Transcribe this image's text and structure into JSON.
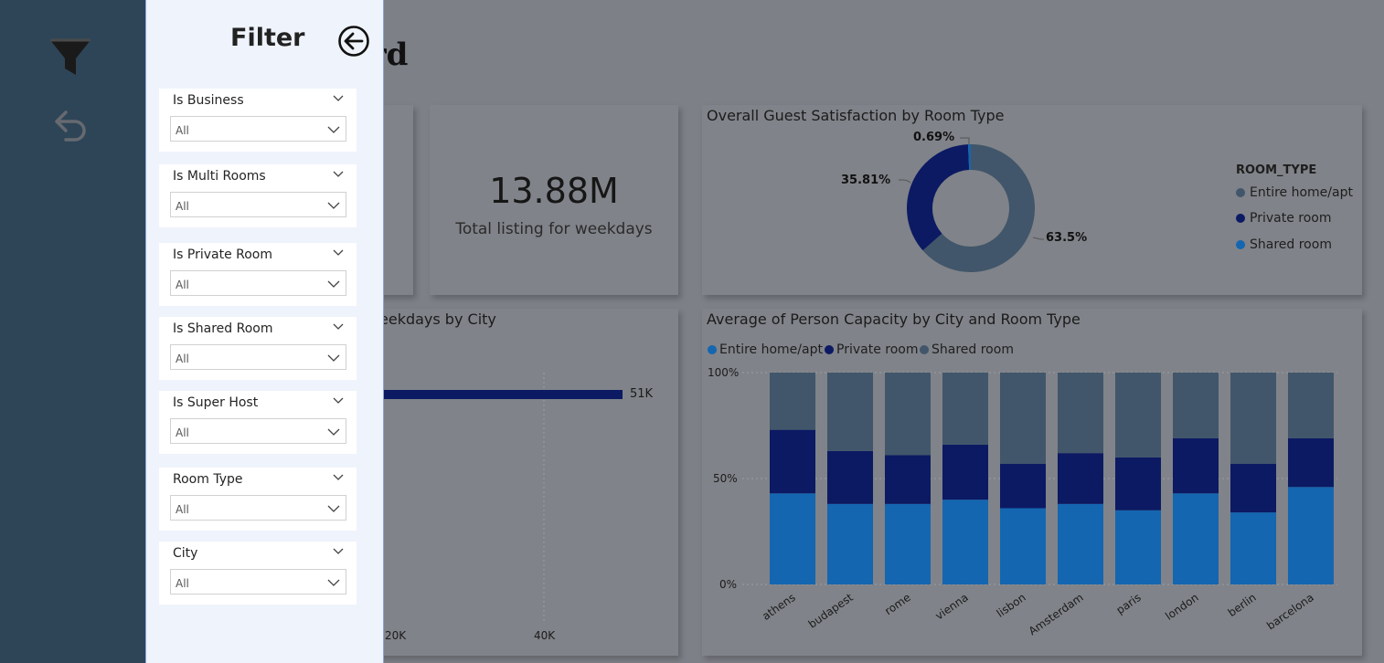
{
  "rail": {
    "icons": [
      "funnel-icon",
      "undo-icon"
    ]
  },
  "dashboard": {
    "title_fragment": "oard",
    "kpi": {
      "value": "13.88M",
      "label": "Total listing for weekdays"
    },
    "satisfaction": {
      "title": "Overall Guest Satisfaction by Room Type",
      "legend_title": "ROOM_TYPE",
      "legend": [
        {
          "label": "Entire home/apt",
          "color": "#41566a"
        },
        {
          "label": "Private room",
          "color": "#0c1a63"
        },
        {
          "label": "Shared room",
          "color": "#1466b0"
        }
      ],
      "labels": {
        "entire": "63.5%",
        "private": "35.81%",
        "shared": "0.69%"
      }
    },
    "weekdays_by_city": {
      "title_fragment": "eekdays by City",
      "bar_label": "51K",
      "ticks": [
        "20K",
        "40K"
      ]
    },
    "capacity": {
      "title": "Average of Person Capacity by City and Room Type",
      "legend": [
        {
          "label": "Entire home/apt",
          "color": "#1466b0"
        },
        {
          "label": "Private room",
          "color": "#0c1a63"
        },
        {
          "label": "Shared room",
          "color": "#41566a"
        }
      ],
      "y_ticks": [
        "100%",
        "50%",
        "0%"
      ]
    }
  },
  "chart_data": [
    {
      "type": "pie",
      "title": "Overall Guest Satisfaction by Room Type",
      "legend_title": "ROOM_TYPE",
      "labels": [
        "Entire home/apt",
        "Private room",
        "Shared room"
      ],
      "values": [
        63.5,
        35.81,
        0.69
      ],
      "colors": [
        "#41566a",
        "#0c1a63",
        "#1466b0"
      ],
      "legend_position": "right"
    },
    {
      "type": "bar",
      "title": "eekdays by City",
      "orientation": "horizontal",
      "data_labels": [
        "51K"
      ],
      "values": [
        51000
      ],
      "x_ticks": [
        "20K",
        "40K"
      ]
    },
    {
      "type": "bar",
      "stacked": "percent",
      "title": "Average of Person Capacity by City and Room Type",
      "categories": [
        "athens",
        "budapest",
        "rome",
        "vienna",
        "lisbon",
        "Amsterdam",
        "paris",
        "london",
        "berlin",
        "barcelona"
      ],
      "series": [
        {
          "name": "Entire home/apt",
          "color": "#1466b0",
          "values": [
            43,
            38,
            38,
            40,
            36,
            38,
            35,
            43,
            34,
            46
          ]
        },
        {
          "name": "Private room",
          "color": "#0c1a63",
          "values": [
            30,
            25,
            23,
            26,
            21,
            24,
            25,
            26,
            23,
            23
          ]
        },
        {
          "name": "Shared room",
          "color": "#41566a",
          "values": [
            27,
            37,
            39,
            34,
            43,
            38,
            40,
            31,
            43,
            31
          ]
        }
      ],
      "y_ticks": [
        "100%",
        "50%",
        "0%"
      ],
      "ylim": [
        0,
        100
      ],
      "legend_position": "top-left",
      "grid": true
    }
  ],
  "filter": {
    "heading": "Filter",
    "slicers": [
      {
        "title": "Is Business",
        "value": "All"
      },
      {
        "title": "Is Multi Rooms",
        "value": "All"
      },
      {
        "title": "Is Private Room",
        "value": "All"
      },
      {
        "title": "Is Shared Room",
        "value": "All"
      },
      {
        "title": "Is Super Host",
        "value": "All"
      },
      {
        "title": "Room Type",
        "value": "All"
      },
      {
        "title": "City",
        "value": "All"
      }
    ]
  }
}
